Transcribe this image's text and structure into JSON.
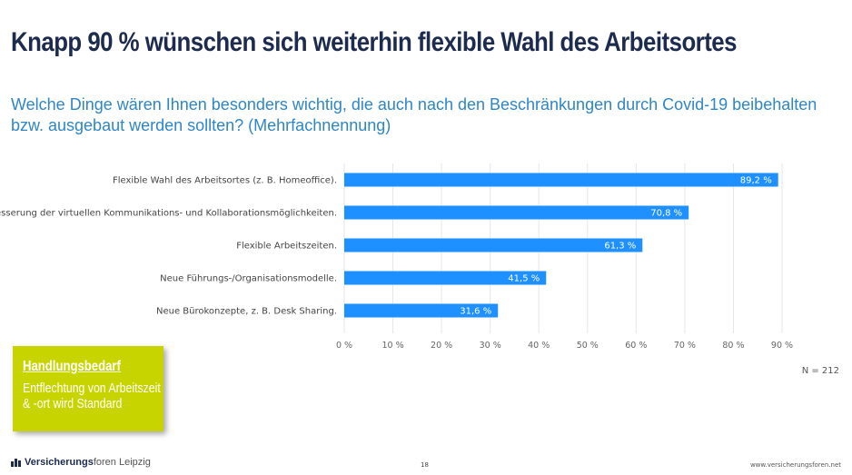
{
  "slide": {
    "title": "Knapp 90 % wünschen sich weiterhin flexible Wahl des Arbeitsortes",
    "subtitle": "Welche Dinge wären Ihnen besonders wichtig, die auch nach den Beschränkungen durch Covid-19 beibehalten bzw. ausgebaut werden sollten? (Mehrfachnennung)",
    "sample_size": "N = 212",
    "page_number": "18",
    "url": "www.versicherungsforen.net"
  },
  "callout": {
    "heading": "Handlungsbedarf",
    "text": "Entflechtung von Arbeitszeit & -ort wird Standard"
  },
  "brand": {
    "bold": "Versicherungs",
    "light": "foren Leipzig"
  },
  "colors": {
    "title": "#1d2b4f",
    "subtitle": "#2e86c9",
    "bar": "#1e90ff",
    "callout": "#c8d400",
    "grid": "#e6e6e6"
  },
  "chart_data": {
    "type": "bar",
    "orientation": "horizontal",
    "categories": [
      "Flexible Wahl des Arbeitsortes (z. B. Homeoffice).",
      "Verbesserung der virtuellen Kommunikations- und Kollaborationsmöglichkeiten.",
      "Flexible Arbeitszeiten.",
      "Neue Führungs-/Organisationsmodelle.",
      "Neue Bürokonzepte, z. B. Desk Sharing."
    ],
    "values": [
      89.2,
      70.8,
      61.3,
      41.5,
      31.6
    ],
    "value_labels": [
      "89,2 %",
      "70,8 %",
      "61,3 %",
      "41,5 %",
      "31,6 %"
    ],
    "xlim": [
      0,
      90
    ],
    "ticks": [
      0,
      10,
      20,
      30,
      40,
      50,
      60,
      70,
      80,
      90
    ],
    "tick_labels": [
      "0 %",
      "10 %",
      "20 %",
      "30 %",
      "40 %",
      "50 %",
      "60 %",
      "70 %",
      "80 %",
      "90 %"
    ],
    "grid": true,
    "legend": "none"
  }
}
